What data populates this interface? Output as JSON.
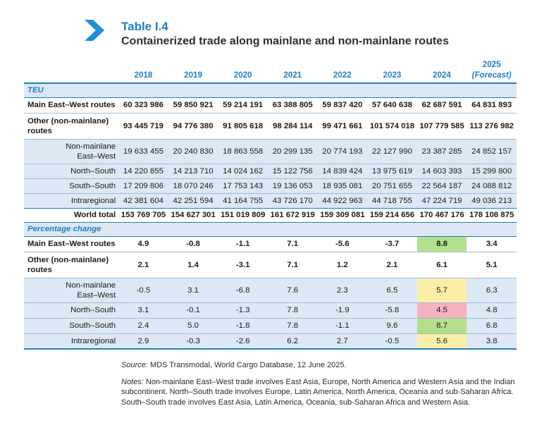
{
  "header": {
    "table_no": "Table I.4",
    "title": "Containerized trade along mainlane and non-mainlane routes"
  },
  "columns": [
    "2018",
    "2019",
    "2020",
    "2021",
    "2022",
    "2023",
    "2024",
    "2025",
    "(Forecast)"
  ],
  "teu": {
    "section": "TEU",
    "main_ew": {
      "label": "Main East–West routes",
      "values": [
        "60 323 986",
        "59 850 921",
        "59 214 191",
        "63 388 805",
        "59 837 420",
        "57 640 638",
        "62 687 591",
        "64 831 893"
      ]
    },
    "other": {
      "label1": "Other (non-mainlane)",
      "label2": "routes",
      "values": [
        "93 445 719",
        "94 776 380",
        "91 805 618",
        "98 284 114",
        "99 471 661",
        "101 574 018",
        "107 779 585",
        "113 276 982"
      ]
    },
    "nm_ew": {
      "label1": "Non-mainlane",
      "label2": "East–West",
      "values": [
        "19 633 455",
        "20 240 830",
        "18 863 558",
        "20 299 135",
        "20 774 193",
        "22 127 990",
        "23 387 285",
        "24 852 157"
      ]
    },
    "ns": {
      "label": "North–South",
      "values": [
        "14 220 855",
        "14 213 710",
        "14 024 162",
        "15 122 756",
        "14 839 424",
        "13 975 619",
        "14 603 393",
        "15 299 800"
      ]
    },
    "ss": {
      "label": "South–South",
      "values": [
        "17 209 806",
        "18 070 246",
        "17 753 143",
        "19 136 053",
        "18 935 081",
        "20 751 655",
        "22 564 187",
        "24 088 812"
      ]
    },
    "intra": {
      "label": "Intraregional",
      "values": [
        "42 381 604",
        "42 251 594",
        "41 164 755",
        "43 726 170",
        "44 922 963",
        "44 718 755",
        "47 224 719",
        "49 036 213"
      ]
    },
    "world": {
      "label": "World total",
      "values": [
        "153 769 705",
        "154 627 301",
        "151 019 809",
        "161 672 919",
        "159 309 081",
        "159 214 656",
        "170 467 176",
        "178 108 875"
      ]
    }
  },
  "pct": {
    "section": "Percentage change",
    "main_ew": {
      "label": "Main East–West routes",
      "values": [
        "4.9",
        "-0.8",
        "-1.1",
        "7.1",
        "-5.6",
        "-3.7",
        "8.8",
        "3.4"
      ]
    },
    "other": {
      "label1": "Other (non-mainlane)",
      "label2": "routes",
      "values": [
        "2.1",
        "1.4",
        "-3.1",
        "7.1",
        "1.2",
        "2.1",
        "6.1",
        "5.1"
      ]
    },
    "nm_ew": {
      "label1": "Non-mainlane",
      "label2": "East–West",
      "values": [
        "-0.5",
        "3.1",
        "-6.8",
        "7.6",
        "2.3",
        "6.5",
        "5.7",
        "6.3"
      ]
    },
    "ns": {
      "label": "North–South",
      "values": [
        "3.1",
        "-0.1",
        "-1.3",
        "7.8",
        "-1.9",
        "-5.8",
        "4.5",
        "4.8"
      ]
    },
    "ss": {
      "label": "South–South",
      "values": [
        "2.4",
        "5.0",
        "-1.8",
        "7.8",
        "-1.1",
        "9.6",
        "8.7",
        "6.8"
      ]
    },
    "intra": {
      "label": "Intraregional",
      "values": [
        "2.9",
        "-0.3",
        "-2.6",
        "6.2",
        "2.7",
        "-0.5",
        "5.6",
        "3.8"
      ]
    }
  },
  "highlights": {
    "green": "#b3e08a",
    "yellow": "#fbefa8",
    "pink": "#f5b3c0",
    "accent": "#1f7fc4"
  },
  "source": {
    "label": "Source:",
    "text": "MDS Transmodal, World Cargo Database, 12 June 2025."
  },
  "notes": {
    "label": "Notes:",
    "text": "Non-mainlane East–West trade involves East Asia, Europe, North America and Western Asia and the Indian subcontinent. North–South trade involves Europe, Latin America, North America, Oceania and sub-Saharan Africa. South–South trade involves East Asia, Latin America, Oceania, sub-Saharan Africa and Western Asia."
  }
}
